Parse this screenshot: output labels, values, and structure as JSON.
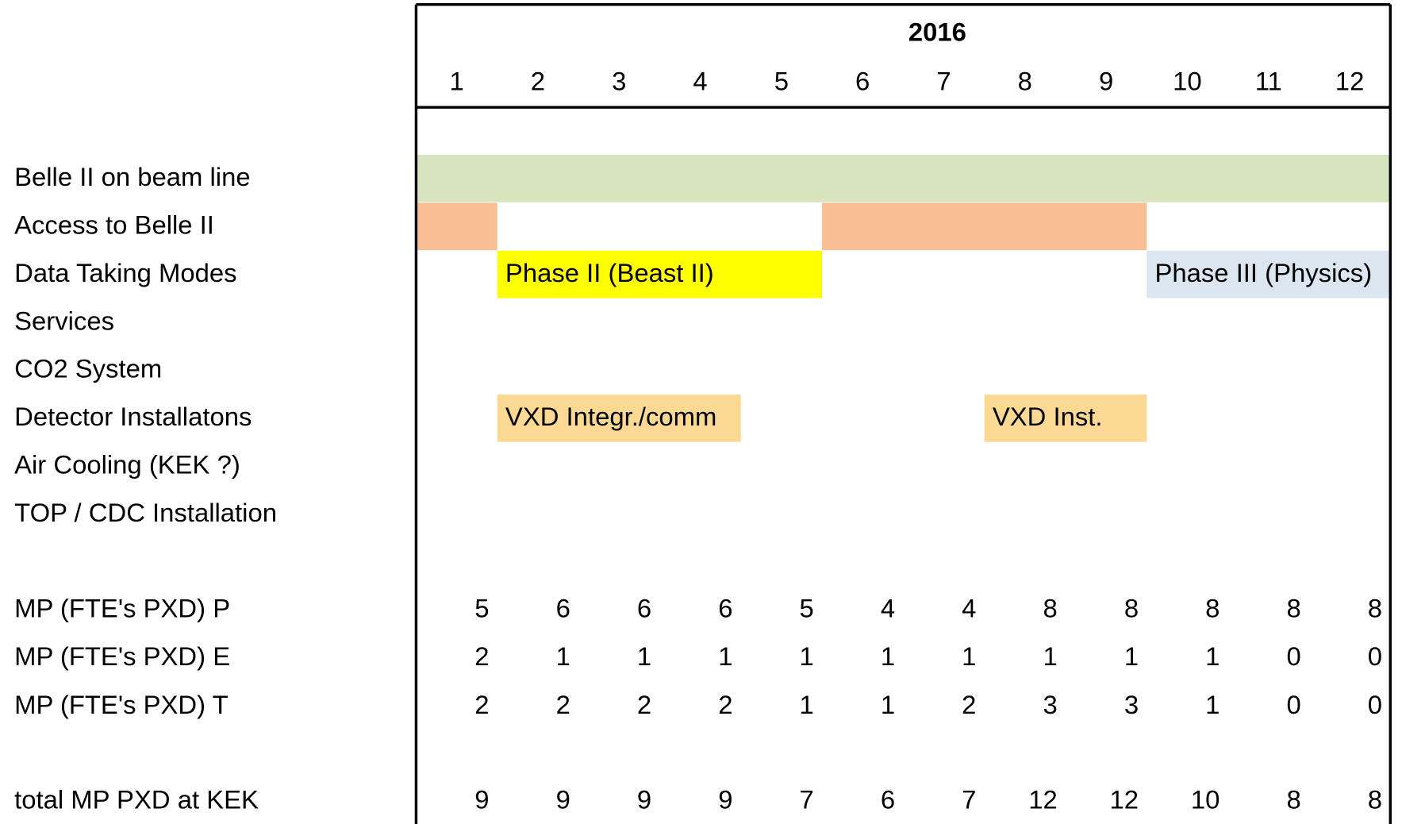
{
  "header": {
    "year": "2016",
    "months": [
      1,
      2,
      3,
      4,
      5,
      6,
      7,
      8,
      9,
      10,
      11,
      12
    ]
  },
  "rows": [
    "Belle II on beam line",
    "Access to Belle II",
    "Data Taking Modes",
    "Services",
    "CO2 System",
    "Detector Installatons",
    "Air Cooling (KEK ?)",
    "TOP / CDC Installation"
  ],
  "bars": [
    {
      "row": 0,
      "start": 1,
      "end": 12,
      "color": "#d7e4bd"
    },
    {
      "row": 1,
      "start": 1,
      "end": 1,
      "color": "#f9be93"
    },
    {
      "row": 1,
      "start": 6,
      "end": 9,
      "color": "#f9be93"
    },
    {
      "row": 2,
      "start": 2,
      "end": 5,
      "label": "Phase II (Beast II)",
      "color": "#ffff00"
    },
    {
      "row": 2,
      "start": 10,
      "end": 12,
      "label": "Phase III (Physics)",
      "color": "#dce6f1"
    },
    {
      "row": 5,
      "start": 2,
      "end": 4,
      "label": "VXD Integr./comm",
      "color": "#fcd993"
    },
    {
      "row": 5,
      "start": 8,
      "end": 9,
      "label": "VXD Inst.",
      "color": "#fcd993"
    }
  ],
  "manpower": [
    {
      "label": "MP (FTE's PXD) P",
      "values": [
        5,
        6,
        6,
        6,
        5,
        4,
        4,
        8,
        8,
        8,
        8,
        8
      ]
    },
    {
      "label": "MP (FTE's PXD) E",
      "values": [
        2,
        1,
        1,
        1,
        1,
        1,
        1,
        1,
        1,
        1,
        0,
        0
      ]
    },
    {
      "label": "MP (FTE's PXD) T",
      "values": [
        2,
        2,
        2,
        2,
        1,
        1,
        2,
        3,
        3,
        1,
        0,
        0
      ]
    }
  ],
  "total": {
    "label": "total MP PXD at KEK",
    "values": [
      9,
      9,
      9,
      9,
      7,
      6,
      7,
      12,
      12,
      10,
      8,
      8
    ]
  }
}
